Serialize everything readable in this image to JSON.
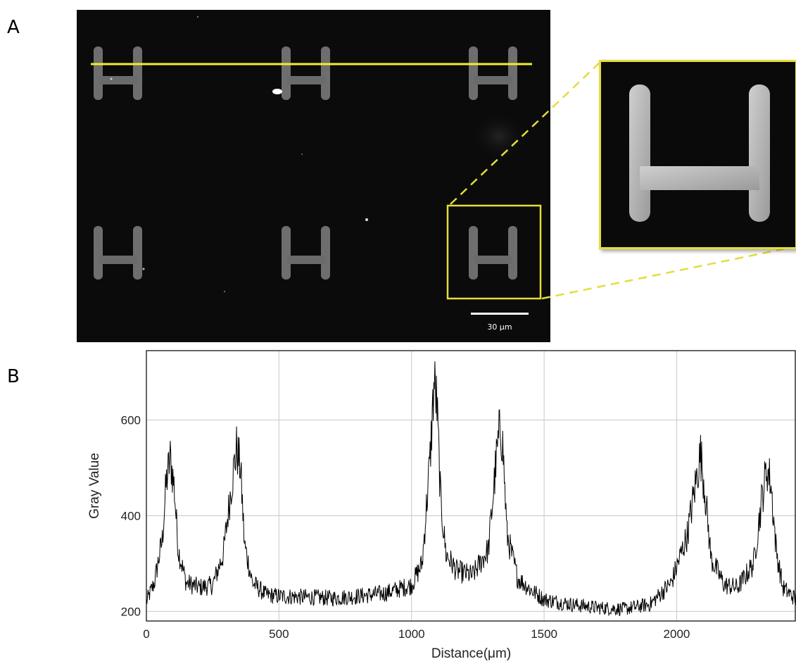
{
  "figure": {
    "panel_a_label": "A",
    "panel_b_label": "B",
    "scale_bar_label": "30 μm"
  },
  "colors": {
    "profile_line": "#f3ee2a",
    "zoom_box": "#e4dd3a",
    "micrograph_background": "#0b0b0b",
    "plot_line": "#000000",
    "grid": "#c8c8c8"
  },
  "chart_data": {
    "type": "line",
    "xlabel": "Distance(μm)",
    "ylabel": "Gray Value",
    "xlim": [
      0,
      2450
    ],
    "ylim": [
      180,
      745
    ],
    "xticks": [
      0,
      500,
      1000,
      1500,
      2000
    ],
    "yticks": [
      200,
      400,
      600
    ],
    "grid": true,
    "series": [
      {
        "x": [
          0,
          30,
          60,
          75,
          90,
          105,
          120,
          150,
          200,
          250,
          290,
          320,
          340,
          355,
          370,
          400,
          450,
          500,
          600,
          700,
          800,
          900,
          1000,
          1040,
          1070,
          1085,
          1095,
          1110,
          1130,
          1170,
          1230,
          1290,
          1320,
          1335,
          1345,
          1360,
          1400,
          1450,
          1500,
          1600,
          1700,
          1800,
          1900,
          1980,
          2040,
          2075,
          2090,
          2105,
          2130,
          2180,
          2230,
          2290,
          2320,
          2340,
          2355,
          2375,
          2400,
          2450
        ],
        "y": [
          220,
          260,
          350,
          470,
          520,
          460,
          330,
          260,
          250,
          255,
          320,
          460,
          540,
          500,
          340,
          260,
          235,
          232,
          230,
          228,
          232,
          238,
          255,
          300,
          520,
          680,
          640,
          430,
          320,
          285,
          275,
          330,
          520,
          590,
          540,
          360,
          270,
          245,
          225,
          215,
          208,
          205,
          215,
          260,
          360,
          480,
          530,
          460,
          310,
          255,
          250,
          300,
          430,
          500,
          470,
          330,
          250,
          225
        ]
      }
    ]
  }
}
